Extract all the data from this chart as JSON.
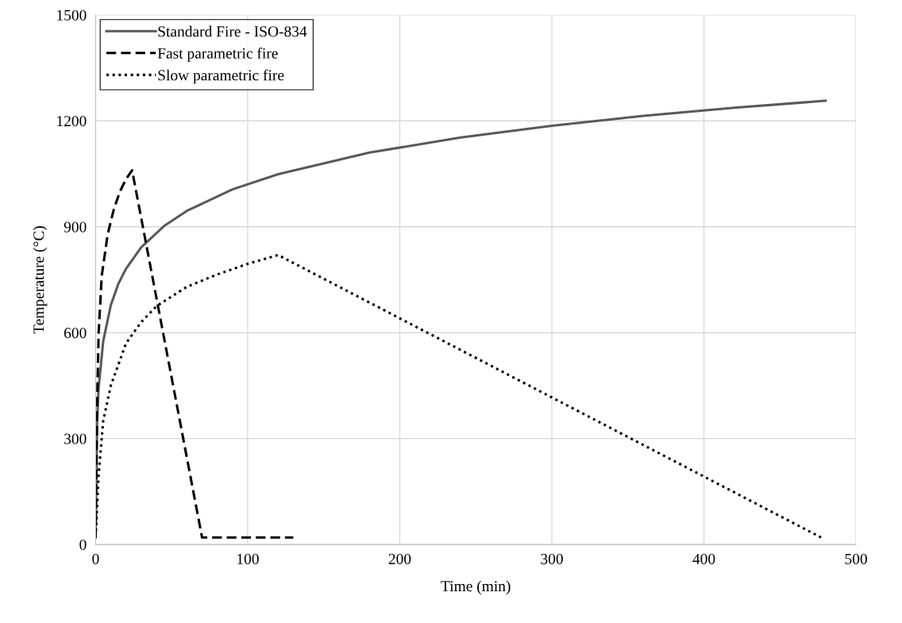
{
  "chart_data": {
    "type": "line",
    "xlabel": "Time (min)",
    "ylabel": "Temperature (°C)",
    "xlim": [
      0,
      500
    ],
    "xticks": [
      0,
      100,
      200,
      300,
      400,
      500
    ],
    "ylim": [
      0,
      1500
    ],
    "yticks": [
      0,
      300,
      600,
      900,
      1200,
      1500
    ],
    "grid": true,
    "legend": "top left",
    "marker": "none",
    "series": [
      {
        "name": "Standard Fire - ISO-834",
        "color": "#595959",
        "line_style": "solid",
        "x": [
          0,
          1,
          2,
          5,
          10,
          15,
          20,
          30,
          45,
          60,
          90,
          120,
          180,
          240,
          300,
          360,
          420,
          480
        ],
        "values": [
          20,
          349,
          445,
          576,
          678,
          739,
          781,
          842,
          902,
          945,
          1006,
          1049,
          1110,
          1153,
          1186,
          1214,
          1237,
          1257
        ]
      },
      {
        "name": "Fast parametric fire",
        "color": "#000000",
        "line_style": "dashed",
        "x": [
          0,
          1,
          2,
          4,
          8,
          12,
          16,
          20,
          24,
          70,
          130
        ],
        "values": [
          20,
          400,
          600,
          760,
          880,
          950,
          1000,
          1035,
          1060,
          20,
          20
        ]
      },
      {
        "name": "Slow parametric fire",
        "color": "#000000",
        "line_style": "dotted",
        "x": [
          0,
          2,
          5,
          10,
          20,
          30,
          40,
          60,
          80,
          100,
          120,
          477
        ],
        "values": [
          20,
          200,
          350,
          450,
          570,
          630,
          675,
          730,
          765,
          795,
          820,
          20
        ]
      }
    ]
  }
}
